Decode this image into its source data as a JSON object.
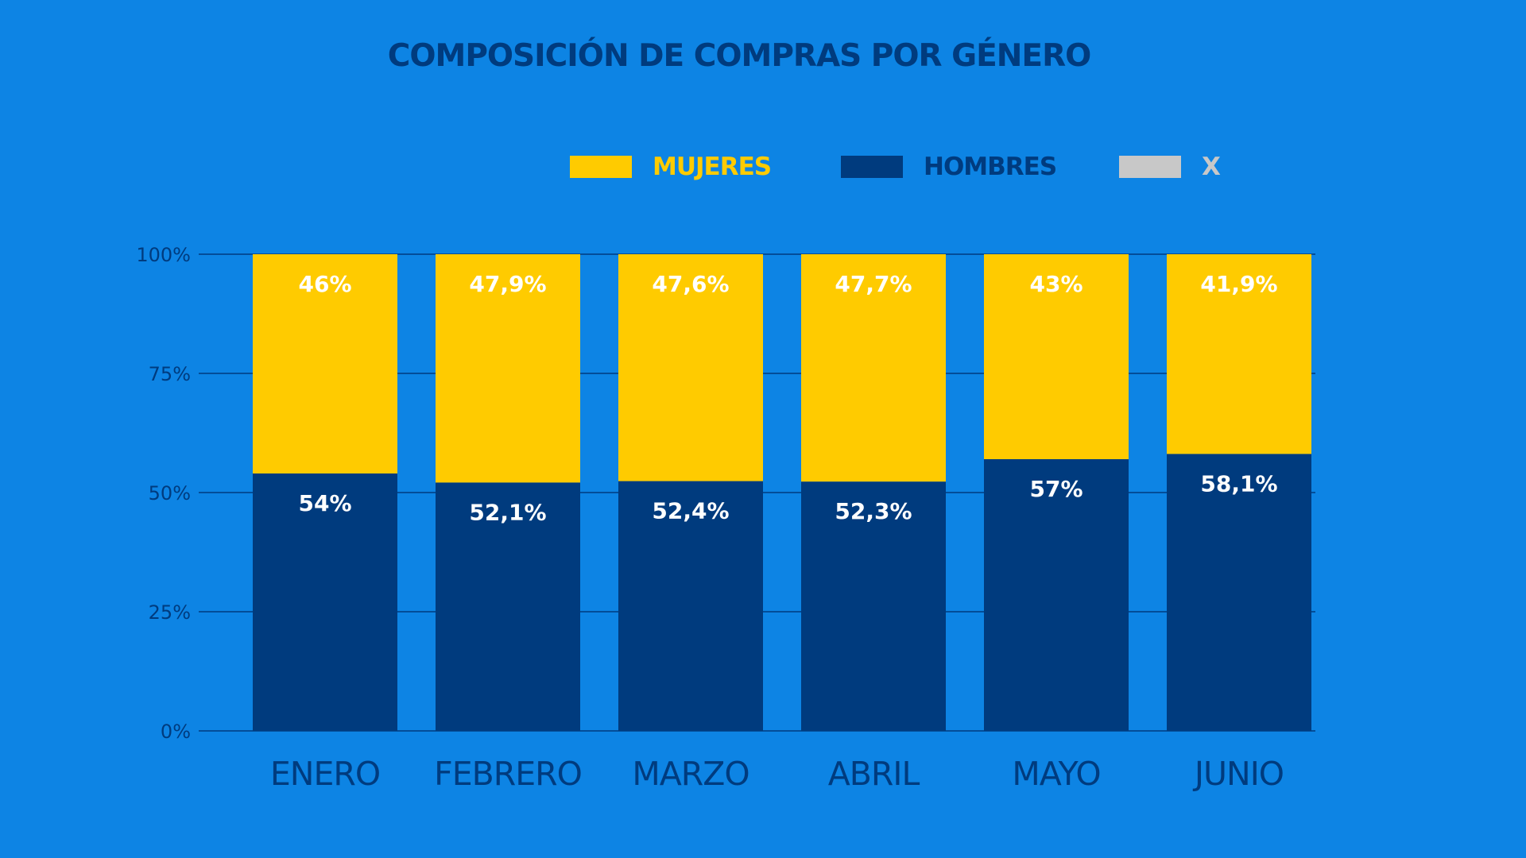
{
  "chart_data": {
    "type": "bar",
    "stacked": true,
    "title": "COMPOSICIÓN DE COMPRAS POR GÉNERO",
    "categories": [
      "ENERO",
      "FEBRERO",
      "MARZO",
      "ABRIL",
      "MAYO",
      "JUNIO"
    ],
    "series": [
      {
        "name": "HOMBRES",
        "color": "#003b7e",
        "values": [
          54,
          52.1,
          52.4,
          52.3,
          57,
          58.1
        ],
        "labels": [
          "54%",
          "52,1%",
          "52,4%",
          "52,3%",
          "57%",
          "58,1%"
        ]
      },
      {
        "name": "MUJERES",
        "color": "#ffcb00",
        "values": [
          46,
          47.9,
          47.6,
          47.7,
          43,
          41.9
        ],
        "labels": [
          "46%",
          "47,9%",
          "47,6%",
          "47,7%",
          "43%",
          "41,9%"
        ]
      },
      {
        "name": "X",
        "color": "#c8c8c8",
        "values": [
          0,
          0,
          0,
          0,
          0,
          0
        ],
        "labels": []
      }
    ],
    "yticks": [
      "0%",
      "25%",
      "50%",
      "75%",
      "100%"
    ],
    "ytick_values": [
      0,
      25,
      50,
      75,
      100
    ],
    "ylim": [
      0,
      100
    ],
    "xlabel": "",
    "ylabel": "",
    "grid": true,
    "legend_position": "top"
  },
  "legend": [
    {
      "name": "MUJERES",
      "color": "#ffcb00",
      "text_color": "#ffcb00"
    },
    {
      "name": "HOMBRES",
      "color": "#003b7e",
      "text_color": "#003b7e"
    },
    {
      "name": "X",
      "color": "#c8c8c8",
      "text_color": "#c8c8c8"
    }
  ],
  "colors": {
    "background": "#0d84e4",
    "grid": "#003b7e",
    "axis_text": "#003b7e",
    "data_label": "#ffffff"
  }
}
